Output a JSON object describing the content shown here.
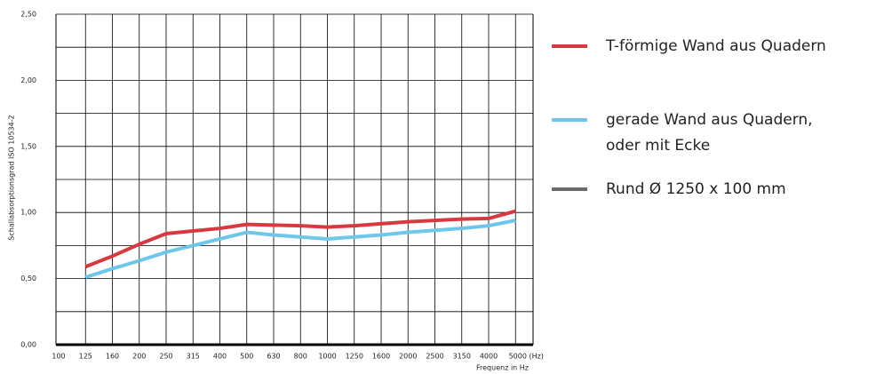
{
  "chart_data": {
    "type": "line",
    "y_label": "Schallabsorptionsgrad ISO 10534-2",
    "x_label": "Frequenz in Hz",
    "categories": [
      "100",
      "125",
      "160",
      "200",
      "250",
      "315",
      "400",
      "500",
      "630",
      "800",
      "1000",
      "1250",
      "1600",
      "2000",
      "2500",
      "3150",
      "4000",
      "5000 (Hz)"
    ],
    "series": [
      {
        "name": "T-förmige Wand aus Quadern",
        "color": "#d63a40",
        "values": [
          null,
          0.59,
          0.67,
          0.76,
          0.84,
          0.86,
          0.88,
          0.91,
          0.905,
          0.9,
          0.89,
          0.9,
          0.915,
          0.93,
          0.94,
          0.95,
          0.955,
          1.01
        ]
      },
      {
        "name": "gerade Wand aus Quadern, oder mit Ecke",
        "color": "#6ec6ea",
        "values": [
          null,
          0.51,
          0.575,
          0.635,
          0.7,
          0.75,
          0.8,
          0.85,
          0.83,
          0.815,
          0.8,
          0.815,
          0.83,
          0.85,
          0.865,
          0.88,
          0.9,
          0.94
        ]
      },
      {
        "name": "Rund  Ø 1250 x 100 mm",
        "color": "#6b6b6b",
        "values": [
          null,
          null,
          null,
          null,
          null,
          null,
          null,
          null,
          null,
          null,
          null,
          null,
          null,
          null,
          null,
          null,
          null,
          null
        ]
      }
    ],
    "ylim": [
      0,
      2.5
    ],
    "yticks": [
      {
        "value": 0,
        "label": "0,00"
      },
      {
        "value": 0.5,
        "label": "0,50"
      },
      {
        "value": 1,
        "label": "1,00"
      },
      {
        "value": 1.5,
        "label": "1,50"
      },
      {
        "value": 2,
        "label": "2,00"
      },
      {
        "value": 2.5,
        "label": "2,50"
      }
    ],
    "y_minor_ticks": [
      0.25,
      0.75,
      1.25,
      1.75,
      2.25
    ],
    "grid": true,
    "legend": "right"
  }
}
